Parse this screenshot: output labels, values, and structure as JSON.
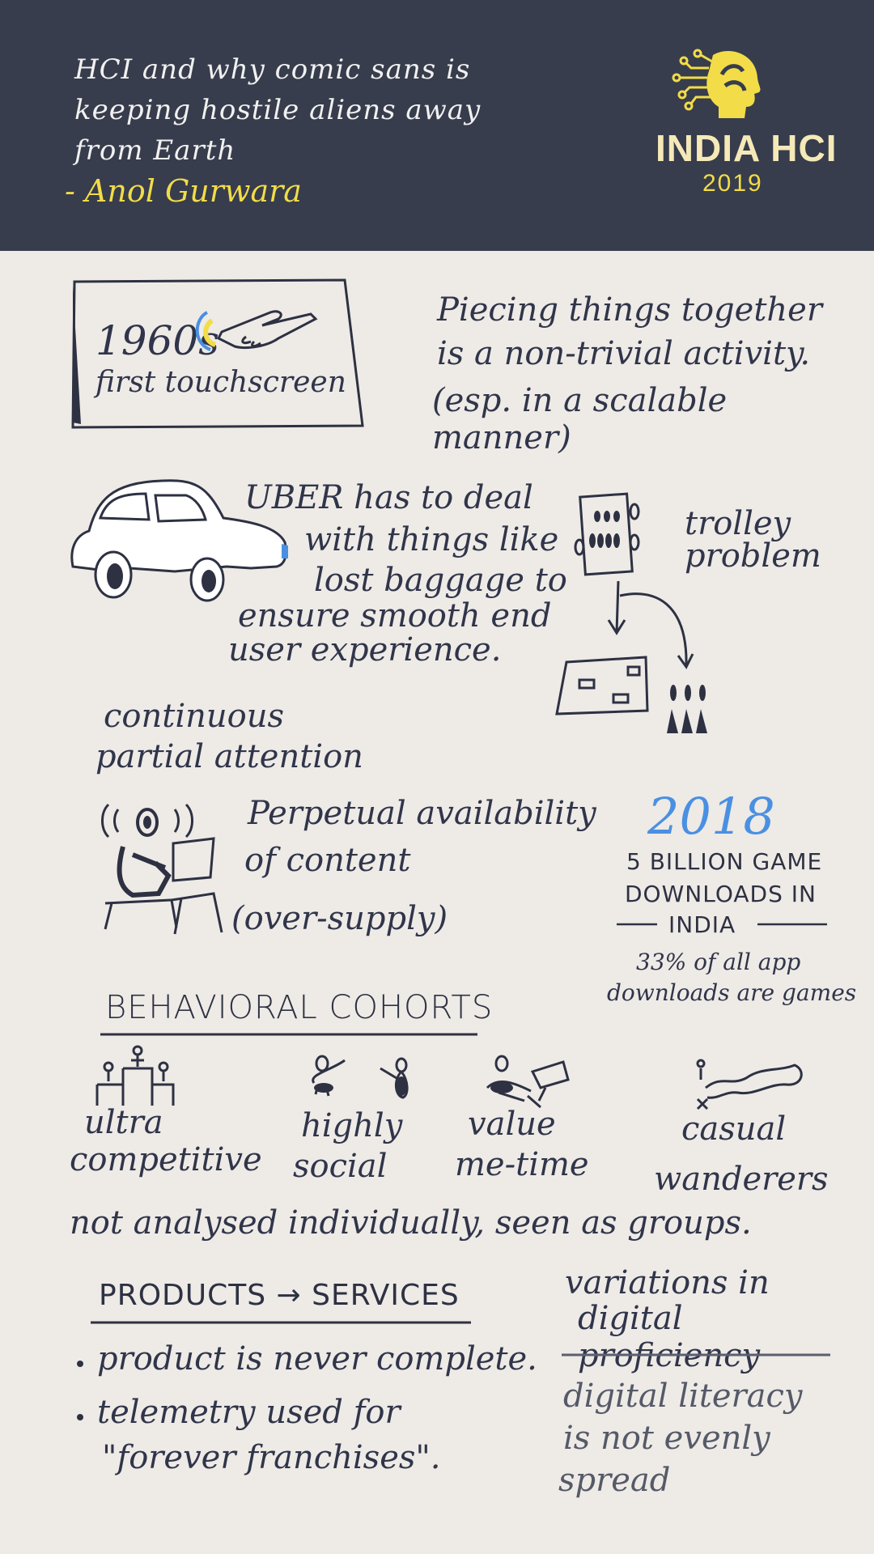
{
  "header": {
    "title_lines": [
      "HCI and why comic sans is",
      "keeping hostile aliens away",
      "from Earth"
    ],
    "author": "- Anol Gurwara",
    "logo": {
      "name": "INDIA HCI",
      "year": "2019",
      "icon": "head-circuit-icon"
    }
  },
  "touchscreen": {
    "year": "1960s",
    "caption": "first touchscreen",
    "icon": "finger-touch-icon"
  },
  "piecing": {
    "lines": [
      "Piecing things together",
      "is a non-trivial activity.",
      "(esp. in a scalable manner)"
    ]
  },
  "uber": {
    "lines": [
      "UBER has to deal",
      "with things like",
      "lost baggage to",
      "ensure smooth end",
      "user experience."
    ],
    "icon": "car-icon"
  },
  "trolley": {
    "label_lines": [
      "trolley",
      "problem"
    ],
    "icon": "trolley-diagram-icon"
  },
  "cpa": {
    "heading_lines": [
      "continuous",
      "partial attention"
    ],
    "body_lines": [
      "Perpetual availability",
      "of content",
      "(over-supply)"
    ],
    "icon": "person-at-laptop-icon"
  },
  "games": {
    "year": "2018",
    "lines": [
      "5 BILLION GAME",
      "DOWNLOADS IN",
      "INDIA"
    ],
    "sub_lines": [
      "33% of all app",
      "downloads are games"
    ]
  },
  "cohorts": {
    "heading": "BEHAVIORAL COHORTS",
    "items": [
      {
        "lines": [
          "ultra",
          "competitive"
        ],
        "icon": "podium-icon"
      },
      {
        "lines": [
          "highly",
          "social"
        ],
        "icon": "people-talking-icon"
      },
      {
        "lines": [
          "value",
          "me-time"
        ],
        "icon": "person-relaxing-icon"
      },
      {
        "lines": [
          "casual",
          "wanderers"
        ],
        "icon": "wandering-path-icon"
      }
    ],
    "note": "not analysed individually, seen as groups."
  },
  "products": {
    "heading": "PRODUCTS → SERVICES",
    "bullets": [
      "product is never complete.",
      "telemetry used for"
    ],
    "bullet2_cont": "\"forever franchises\"."
  },
  "digital": {
    "heading_lines": [
      "variations in",
      "digital proficiency"
    ],
    "body_lines": [
      "digital literacy",
      "is not evenly",
      "spread"
    ]
  },
  "colors": {
    "header_bg": "#373d4c",
    "accent_yellow": "#f2dc48",
    "accent_blue": "#4a90e2",
    "ink": "#2d3142",
    "paper": "#eeeae6"
  }
}
